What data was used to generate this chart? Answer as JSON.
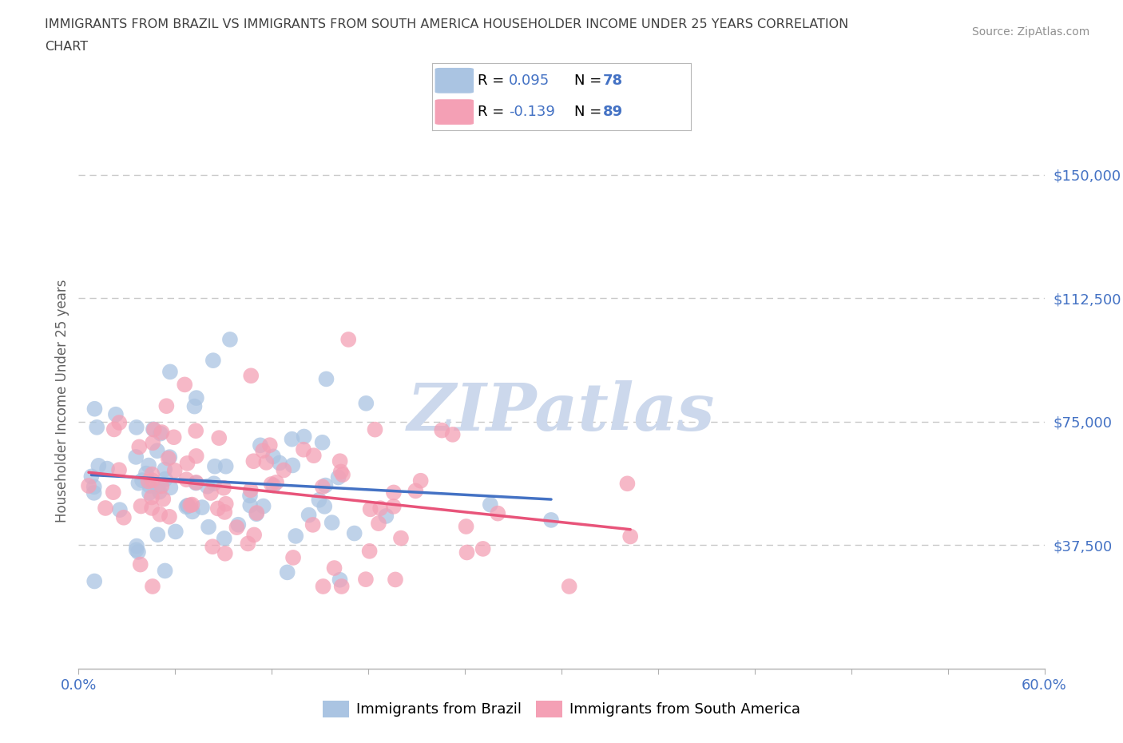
{
  "title_line1": "IMMIGRANTS FROM BRAZIL VS IMMIGRANTS FROM SOUTH AMERICA HOUSEHOLDER INCOME UNDER 25 YEARS CORRELATION",
  "title_line2": "CHART",
  "source_text": "Source: ZipAtlas.com",
  "watermark": "ZIPatlas",
  "ylabel": "Householder Income Under 25 years",
  "xmin": 0.0,
  "xmax": 0.6,
  "ymin": 0,
  "ymax": 162500,
  "yticks": [
    0,
    37500,
    75000,
    112500,
    150000
  ],
  "ytick_labels": [
    "",
    "$37,500",
    "$75,000",
    "$112,500",
    "$150,000"
  ],
  "brazil_R": 0.095,
  "brazil_N": 78,
  "south_america_R": -0.139,
  "south_america_N": 89,
  "brazil_color": "#aac4e2",
  "south_america_color": "#f4a0b5",
  "brazil_line_color": "#4472c4",
  "south_america_line_color": "#e8547a",
  "brazil_line_dash": "solid",
  "south_america_line_dash": "solid",
  "legend_text_color": "#4472c4",
  "legend_R_color": "#000000",
  "axis_color": "#b0b0b0",
  "grid_color": "#c8c8c8",
  "title_color": "#404040",
  "source_color": "#909090",
  "watermark_color": "#ccd8ec"
}
